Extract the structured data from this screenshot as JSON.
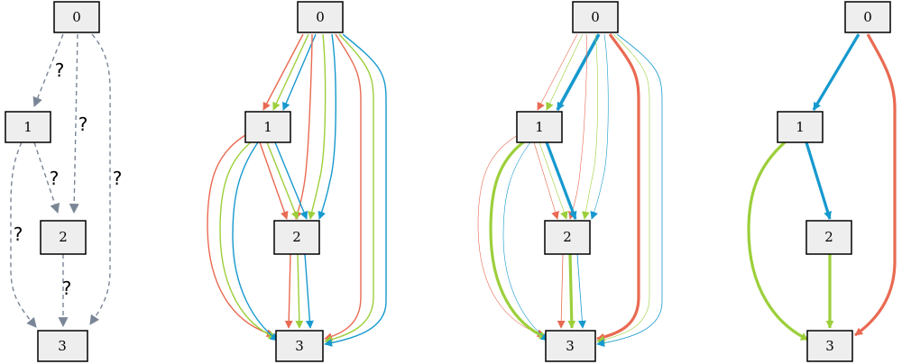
{
  "colors": {
    "gray": "#7a8696",
    "red": "#e96a52",
    "green": "#9ccf3b",
    "blue": "#1699ce",
    "node_fill": "#eeeeee",
    "node_border": "#000000"
  },
  "nodes": {
    "n0": "0",
    "n1": "1",
    "n2": "2",
    "n3": "3"
  },
  "uncertain_label": "?",
  "panels": [
    {
      "id": "unknown-graph",
      "edges": [
        {
          "from": "0",
          "to": "1",
          "color": "gray",
          "style": "dashed",
          "label": "?"
        },
        {
          "from": "0",
          "to": "2",
          "color": "gray",
          "style": "dashed",
          "label": "?"
        },
        {
          "from": "0",
          "to": "3",
          "color": "gray",
          "style": "dashed",
          "label": "?"
        },
        {
          "from": "1",
          "to": "2",
          "color": "gray",
          "style": "dashed",
          "label": "?"
        },
        {
          "from": "1",
          "to": "3",
          "color": "gray",
          "style": "dashed",
          "label": "?"
        },
        {
          "from": "2",
          "to": "3",
          "color": "gray",
          "style": "dashed",
          "label": "?"
        }
      ]
    },
    {
      "id": "all-candidate-paths",
      "edges": [
        {
          "from": "0",
          "to": "1",
          "color": "red"
        },
        {
          "from": "0",
          "to": "1",
          "color": "green"
        },
        {
          "from": "0",
          "to": "1",
          "color": "blue"
        },
        {
          "from": "0",
          "to": "2",
          "color": "red"
        },
        {
          "from": "0",
          "to": "2",
          "color": "green"
        },
        {
          "from": "0",
          "to": "2",
          "color": "blue"
        },
        {
          "from": "0",
          "to": "3",
          "color": "red"
        },
        {
          "from": "0",
          "to": "3",
          "color": "green"
        },
        {
          "from": "0",
          "to": "3",
          "color": "blue"
        },
        {
          "from": "1",
          "to": "2",
          "color": "red"
        },
        {
          "from": "1",
          "to": "2",
          "color": "green"
        },
        {
          "from": "1",
          "to": "2",
          "color": "blue"
        },
        {
          "from": "1",
          "to": "3",
          "color": "red"
        },
        {
          "from": "1",
          "to": "3",
          "color": "green"
        },
        {
          "from": "1",
          "to": "3",
          "color": "blue"
        },
        {
          "from": "2",
          "to": "3",
          "color": "red"
        },
        {
          "from": "2",
          "to": "3",
          "color": "green"
        },
        {
          "from": "2",
          "to": "3",
          "color": "blue"
        }
      ]
    },
    {
      "id": "weighted-paths",
      "edges": [
        {
          "from": "0",
          "to": "1",
          "color": "red",
          "weight": "low"
        },
        {
          "from": "0",
          "to": "1",
          "color": "green",
          "weight": "low"
        },
        {
          "from": "0",
          "to": "1",
          "color": "blue",
          "weight": "high"
        },
        {
          "from": "0",
          "to": "2",
          "color": "red",
          "weight": "low"
        },
        {
          "from": "0",
          "to": "2",
          "color": "green",
          "weight": "low"
        },
        {
          "from": "0",
          "to": "2",
          "color": "blue",
          "weight": "low"
        },
        {
          "from": "0",
          "to": "3",
          "color": "red",
          "weight": "high"
        },
        {
          "from": "0",
          "to": "3",
          "color": "green",
          "weight": "low"
        },
        {
          "from": "0",
          "to": "3",
          "color": "blue",
          "weight": "low"
        },
        {
          "from": "1",
          "to": "2",
          "color": "red",
          "weight": "low"
        },
        {
          "from": "1",
          "to": "2",
          "color": "green",
          "weight": "low"
        },
        {
          "from": "1",
          "to": "2",
          "color": "blue",
          "weight": "high"
        },
        {
          "from": "1",
          "to": "3",
          "color": "red",
          "weight": "low"
        },
        {
          "from": "1",
          "to": "3",
          "color": "green",
          "weight": "high"
        },
        {
          "from": "1",
          "to": "3",
          "color": "blue",
          "weight": "low"
        },
        {
          "from": "2",
          "to": "3",
          "color": "red",
          "weight": "low"
        },
        {
          "from": "2",
          "to": "3",
          "color": "green",
          "weight": "high"
        },
        {
          "from": "2",
          "to": "3",
          "color": "blue",
          "weight": "low"
        }
      ]
    },
    {
      "id": "selected-paths",
      "edges": [
        {
          "from": "0",
          "to": "1",
          "color": "blue"
        },
        {
          "from": "0",
          "to": "3",
          "color": "red"
        },
        {
          "from": "1",
          "to": "2",
          "color": "blue"
        },
        {
          "from": "1",
          "to": "3",
          "color": "green"
        },
        {
          "from": "2",
          "to": "3",
          "color": "green"
        }
      ]
    }
  ]
}
